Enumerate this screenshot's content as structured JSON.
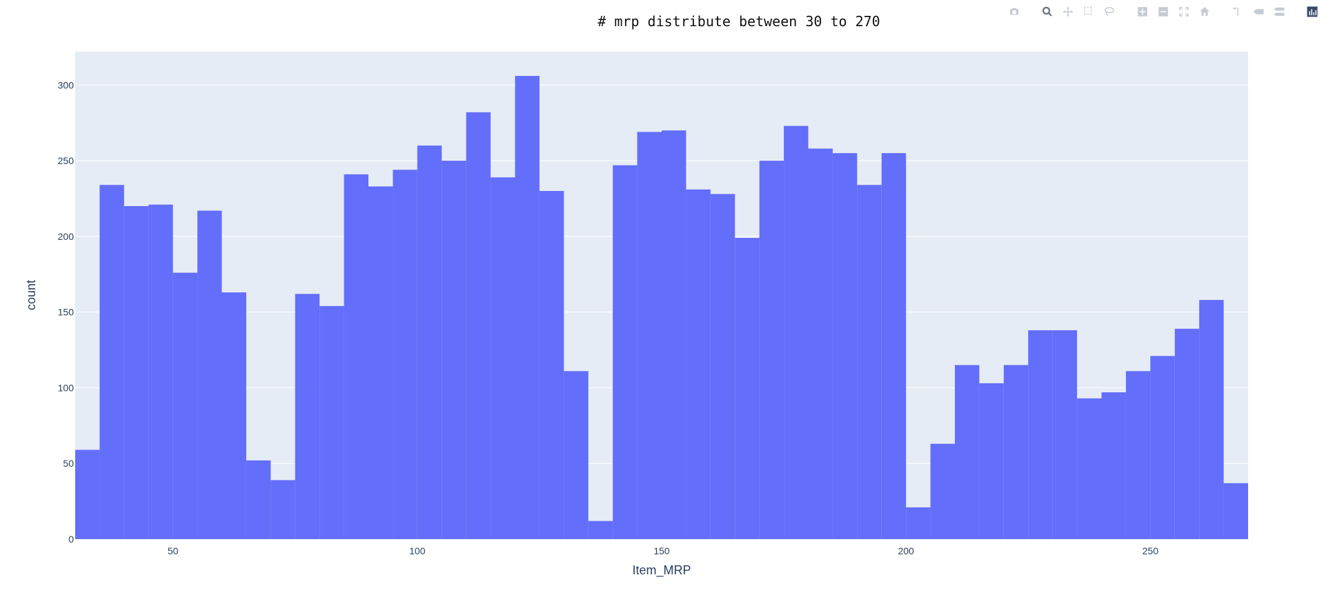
{
  "chart_data": {
    "type": "bar",
    "title": "# mrp distribute between 30 to 270",
    "xlabel": "Item_MRP",
    "ylabel": "count",
    "bin_width": 5,
    "bin_start": 30,
    "xlim": [
      30,
      270
    ],
    "ylim": [
      0,
      322
    ],
    "xticks": [
      50,
      100,
      150,
      200,
      250
    ],
    "yticks": [
      0,
      50,
      100,
      150,
      200,
      250,
      300
    ],
    "values": [
      59,
      234,
      220,
      221,
      176,
      217,
      163,
      52,
      39,
      162,
      154,
      241,
      233,
      244,
      260,
      250,
      282,
      239,
      306,
      230,
      111,
      12,
      247,
      269,
      270,
      231,
      228,
      199,
      250,
      273,
      258,
      255,
      234,
      255,
      21,
      63,
      115,
      103,
      115,
      138,
      138,
      93,
      97,
      111,
      121,
      139,
      158,
      37
    ],
    "bar_color": "#636efa",
    "plot_bg": "#e5ecf6",
    "grid": true,
    "legend": "none"
  },
  "modebar": {
    "buttons": [
      {
        "name": "camera-icon",
        "group": 0
      },
      {
        "name": "zoom-icon",
        "group": 1,
        "active": true
      },
      {
        "name": "pan-icon",
        "group": 1
      },
      {
        "name": "box-select-icon",
        "group": 1
      },
      {
        "name": "lasso-select-icon",
        "group": 1
      },
      {
        "name": "zoom-in-icon",
        "group": 2
      },
      {
        "name": "zoom-out-icon",
        "group": 2
      },
      {
        "name": "autoscale-icon",
        "group": 2
      },
      {
        "name": "reset-axes-icon",
        "group": 2
      },
      {
        "name": "spike-lines-icon",
        "group": 3
      },
      {
        "name": "hover-closest-icon",
        "group": 3
      },
      {
        "name": "hover-compare-icon",
        "group": 3
      },
      {
        "name": "plotly-logo-icon",
        "group": 4
      }
    ]
  }
}
